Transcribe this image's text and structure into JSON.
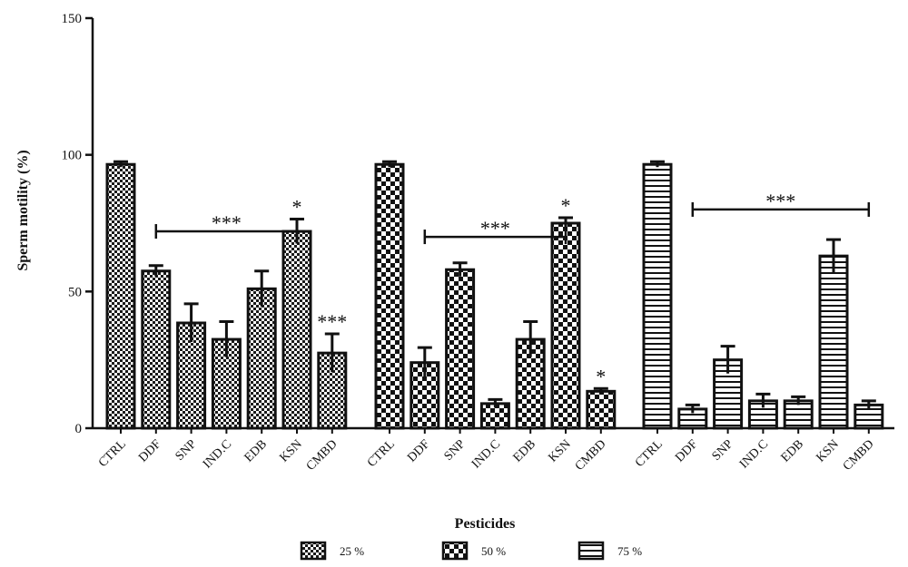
{
  "chart_data": {
    "type": "bar",
    "title": "",
    "xlabel": "Pesticides",
    "ylabel": "Sperm motility (%)",
    "ylim": [
      0,
      150
    ],
    "yticks": [
      0,
      50,
      100,
      150
    ],
    "categories": [
      "CTRL",
      "DDF",
      "SNP",
      "IND.C",
      "EDB",
      "KSN",
      "CMBD"
    ],
    "series": [
      {
        "name": "25 %",
        "pattern": "checker",
        "values": [
          96.5,
          57.5,
          38.5,
          32.5,
          51,
          72,
          27.5
        ],
        "errors": [
          1,
          2,
          7,
          6.5,
          6.5,
          4.5,
          7
        ]
      },
      {
        "name": "50 %",
        "pattern": "checker-large",
        "values": [
          96.5,
          24,
          58,
          9,
          32.5,
          75,
          13.5
        ],
        "errors": [
          1,
          5.5,
          2.5,
          1.5,
          6.5,
          2,
          1
        ]
      },
      {
        "name": "75 %",
        "pattern": "horizontal-lines",
        "values": [
          96.5,
          7,
          25,
          10,
          10,
          63,
          8.5
        ],
        "errors": [
          1,
          1.5,
          5,
          2.5,
          1.5,
          6,
          1.5
        ]
      }
    ],
    "annotations": [
      {
        "series": 0,
        "text": "***",
        "type": "bracket",
        "from": 1,
        "to": 5,
        "y": 72
      },
      {
        "series": 0,
        "text": "*",
        "type": "bar",
        "at": 5
      },
      {
        "series": 0,
        "text": "***",
        "type": "bar",
        "at": 6
      },
      {
        "series": 1,
        "text": "***",
        "type": "bracket",
        "from": 1,
        "to": 5,
        "y": 70
      },
      {
        "series": 1,
        "text": "*",
        "type": "bar",
        "at": 5
      },
      {
        "series": 1,
        "text": "*",
        "type": "bar",
        "at": 6
      },
      {
        "series": 2,
        "text": "***",
        "type": "bracket",
        "from": 1,
        "to": 6,
        "y": 80
      }
    ],
    "legend_position": "bottom-center",
    "grid": false
  }
}
